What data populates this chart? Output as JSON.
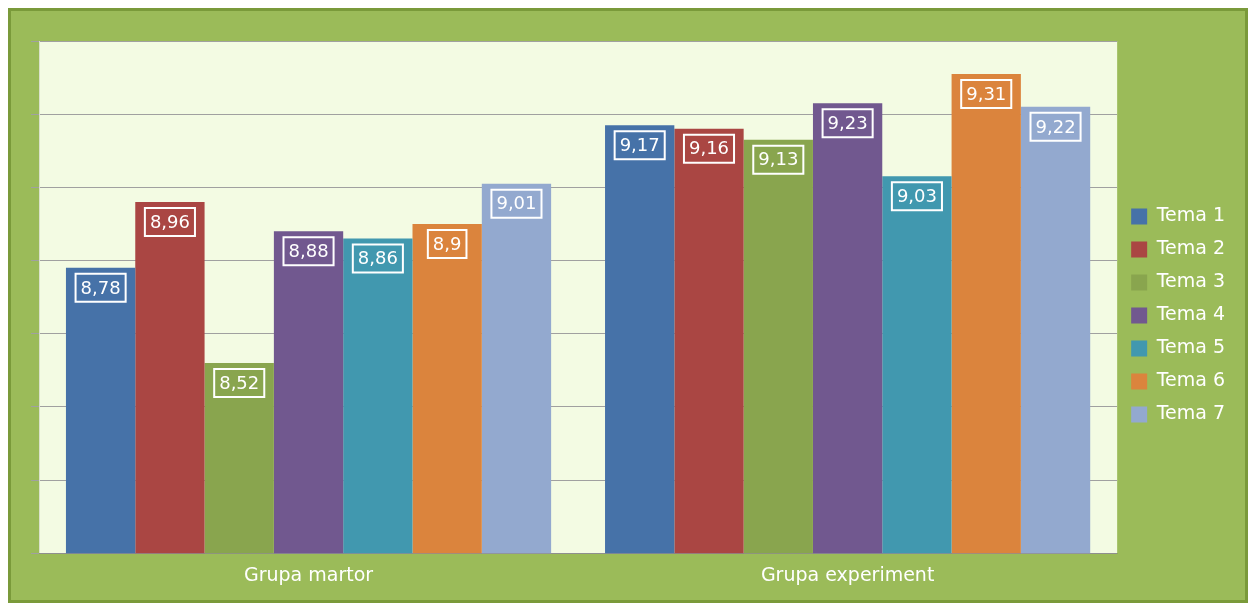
{
  "chart_data": {
    "type": "bar",
    "categories": [
      "Grupa martor",
      "Grupa experiment"
    ],
    "series": [
      {
        "name": "Tema 1",
        "color": "#4672a8",
        "values": [
          8.78,
          9.17
        ],
        "value_labels": [
          "8,78",
          "9,17"
        ]
      },
      {
        "name": "Tema 2",
        "color": "#aa4643",
        "values": [
          8.96,
          9.16
        ],
        "value_labels": [
          "8,96",
          "9,16"
        ]
      },
      {
        "name": "Tema 3",
        "color": "#89a54e",
        "values": [
          8.52,
          9.13
        ],
        "value_labels": [
          "8,52",
          "9,13"
        ]
      },
      {
        "name": "Tema 4",
        "color": "#71588f",
        "values": [
          8.88,
          9.23
        ],
        "value_labels": [
          "8,88",
          "9,23"
        ]
      },
      {
        "name": "Tema 5",
        "color": "#4198af",
        "values": [
          8.86,
          9.03
        ],
        "value_labels": [
          "8,86",
          "9,03"
        ]
      },
      {
        "name": "Tema 6",
        "color": "#db843d",
        "values": [
          8.9,
          9.31
        ],
        "value_labels": [
          "8,9",
          "9,31"
        ]
      },
      {
        "name": "Tema 7",
        "color": "#93a9cf",
        "values": [
          9.01,
          9.22
        ],
        "value_labels": [
          "9,01",
          "9,22"
        ]
      }
    ],
    "ylim": [
      8,
      9.4
    ],
    "yticks": [
      8,
      8.2,
      8.4,
      8.6,
      8.8,
      9,
      9.2,
      9.4
    ],
    "tick_labels": "x",
    "grid": "y",
    "legend": "right"
  }
}
